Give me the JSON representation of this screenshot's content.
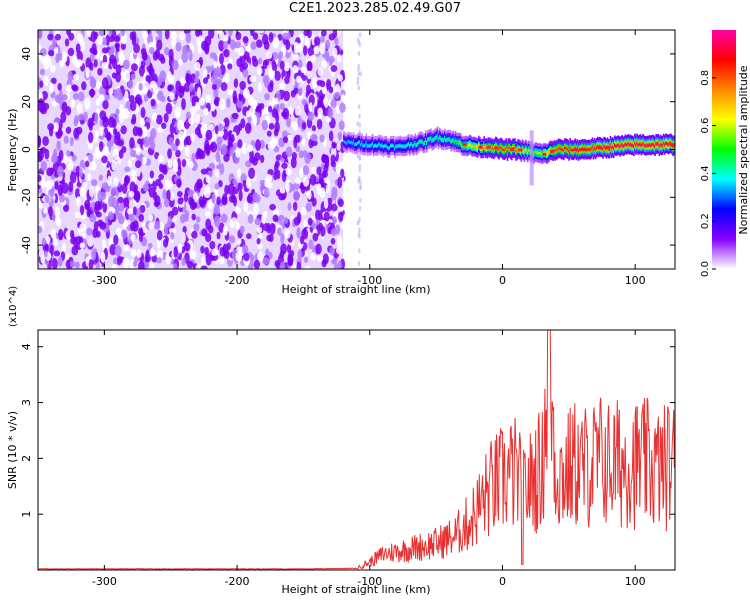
{
  "title": "C2E1.2023.285.02.49.G07",
  "chart_data": [
    {
      "type": "heatmap",
      "xlabel": "Height of straight line (km)",
      "ylabel": "Frequency (Hz)",
      "xlim": [
        -350,
        130
      ],
      "ylim": [
        -50,
        50
      ],
      "xticks": [
        -300,
        -200,
        -100,
        0,
        100
      ],
      "yticks": [
        -40,
        -20,
        0,
        20,
        40
      ],
      "colorbar": {
        "label": "Normalized spectral amplitude",
        "range": [
          0,
          1
        ],
        "ticks": [
          "0.0",
          "0.2",
          "0.4",
          "0.6",
          "0.8"
        ],
        "colors": [
          "#ffffff",
          "#8800ff",
          "#0000ff",
          "#00ffff",
          "#00ff00",
          "#ffff00",
          "#ff8800",
          "#ff0000",
          "#ff00aa"
        ]
      },
      "noise_region": {
        "x_range": [
          -350,
          -120
        ],
        "freq_range": [
          -50,
          50
        ],
        "amplitude": 0.15
      },
      "ridge": {
        "x": [
          -120,
          -100,
          -80,
          -60,
          -50,
          -40,
          -30,
          -20,
          -10,
          0,
          10,
          20,
          30,
          40,
          60,
          80,
          100,
          130
        ],
        "freq": [
          3,
          2,
          1,
          3,
          5,
          4,
          2,
          1,
          1,
          0,
          0,
          -1,
          -2,
          0,
          0,
          1,
          2,
          2
        ],
        "peak_amplitude": [
          0.35,
          0.4,
          0.4,
          0.45,
          0.45,
          0.45,
          0.55,
          0.7,
          0.8,
          0.85,
          0.8,
          0.55,
          0.6,
          0.85,
          0.9,
          0.95,
          0.95,
          0.95
        ]
      }
    },
    {
      "type": "line",
      "xlabel": "Height of straight line (km)",
      "ylabel": "SNR (10 * v/v)",
      "y_multiplier": "(x10^4)",
      "xlim": [
        -350,
        130
      ],
      "ylim": [
        0,
        4.3
      ],
      "xticks": [
        -300,
        -200,
        -100,
        0,
        100
      ],
      "yticks": [
        1,
        2,
        3,
        4
      ],
      "color": "#e83030",
      "series": [
        {
          "x": [
            -350,
            -300,
            -250,
            -200,
            -150,
            -110,
            -100,
            -90,
            -80,
            -70,
            -60,
            -50,
            -40,
            -35,
            -30,
            -25,
            -20,
            -15,
            -10,
            -5,
            0,
            5,
            10,
            15,
            20,
            25,
            30,
            35,
            40,
            45,
            50,
            55,
            60,
            65,
            70,
            75,
            80,
            85,
            90,
            95,
            100,
            105,
            110,
            115,
            120,
            125,
            130
          ],
          "y": [
            0.02,
            0.02,
            0.02,
            0.02,
            0.02,
            0.03,
            0.15,
            0.3,
            0.35,
            0.4,
            0.45,
            0.5,
            0.6,
            0.65,
            0.8,
            0.9,
            1.1,
            1.3,
            1.5,
            1.6,
            1.7,
            1.8,
            1.8,
            1.5,
            1.6,
            1.8,
            1.9,
            4.3,
            1.9,
            1.8,
            1.9,
            2.0,
            1.9,
            2.0,
            2.0,
            2.1,
            2.0,
            2.0,
            2.0,
            2.1,
            2.0,
            2.0,
            2.0,
            1.9,
            1.9,
            2.0,
            2.0
          ]
        }
      ]
    }
  ]
}
